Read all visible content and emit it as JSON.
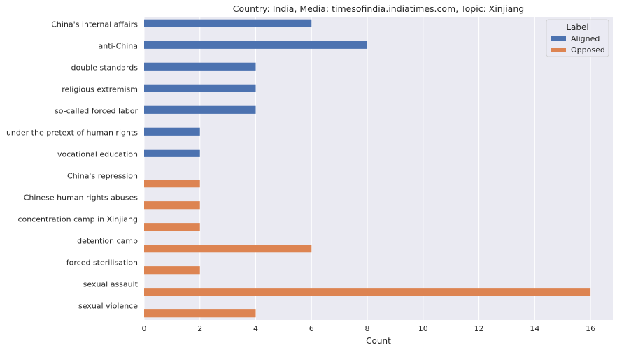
{
  "chart_data": {
    "type": "bar",
    "orientation": "horizontal",
    "title": "Country: India, Media: timesofindia.indiatimes.com, Topic: Xinjiang",
    "xlabel": "Count",
    "ylabel": "",
    "xlim": [
      0,
      16.8
    ],
    "xticks": [
      0,
      2,
      4,
      6,
      8,
      10,
      12,
      14,
      16
    ],
    "grid": true,
    "legend": {
      "title": "Label",
      "placement": "top-right"
    },
    "categories": [
      "China's internal affairs",
      "anti-China",
      "double standards",
      "religious extremism",
      "so-called forced labor",
      "under the pretext of human rights",
      "vocational education",
      "China's repression",
      "Chinese human rights abuses",
      "concentration camp in Xinjiang",
      "detention camp",
      "forced sterilisation",
      "sexual assault",
      "sexual violence"
    ],
    "series": [
      {
        "name": "Aligned",
        "color": "#4c72b0",
        "values": [
          6,
          8,
          4,
          4,
          4,
          2,
          2,
          0,
          0,
          0,
          0,
          0,
          0,
          0
        ]
      },
      {
        "name": "Opposed",
        "color": "#dd8452",
        "values": [
          0,
          0,
          0,
          0,
          0,
          0,
          0,
          2,
          2,
          2,
          6,
          2,
          16,
          4
        ]
      }
    ]
  },
  "colors": {
    "plot_background": "#eaeaf2",
    "grid": "#ffffff"
  }
}
